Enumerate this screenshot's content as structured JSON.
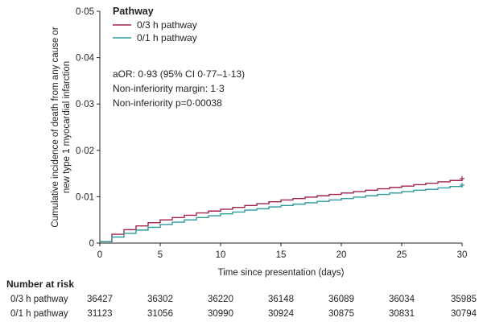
{
  "chart_data": {
    "type": "line",
    "ylabel_line1": "Cumulative incidence of death from any cause or",
    "ylabel_line2": "new type 1 myocardial infarction",
    "xlabel": "Time since presentation (days)",
    "xlim": [
      0,
      30
    ],
    "ylim": [
      0,
      0.05
    ],
    "x_ticks": [
      0,
      5,
      10,
      15,
      20,
      25,
      30
    ],
    "x_tick_labels": [
      "0",
      "5",
      "10",
      "15",
      "20",
      "25",
      "30"
    ],
    "y_ticks": [
      0,
      0.01,
      0.02,
      0.03,
      0.04,
      0.05
    ],
    "y_tick_labels": [
      "0",
      "0·01",
      "0·02",
      "0·03",
      "0·04",
      "0·05"
    ],
    "grid": false,
    "legend": {
      "title": "Pathway",
      "position": "top-left",
      "items": [
        "0/3 h pathway",
        "0/1 h pathway"
      ]
    },
    "annotations": [
      "aOR: 0·93 (95% CI 0·77–1·13)",
      "Non-inferiority margin: 1·3",
      "Non-inferiority p=0·00038"
    ],
    "series": [
      {
        "name": "0/3 h pathway",
        "color": "#a3224a",
        "x": [
          0,
          1,
          2,
          3,
          4,
          5,
          6,
          7,
          8,
          9,
          10,
          11,
          12,
          13,
          14,
          15,
          16,
          17,
          18,
          19,
          20,
          21,
          22,
          23,
          24,
          25,
          26,
          27,
          28,
          29,
          30
        ],
        "y": [
          0.0003,
          0.0019,
          0.0029,
          0.0037,
          0.0044,
          0.005,
          0.0055,
          0.006,
          0.0065,
          0.0069,
          0.0073,
          0.0077,
          0.0081,
          0.0085,
          0.0089,
          0.0093,
          0.0096,
          0.0099,
          0.0102,
          0.0105,
          0.0108,
          0.0111,
          0.0114,
          0.0117,
          0.012,
          0.0123,
          0.0126,
          0.0129,
          0.0132,
          0.0135,
          0.0139
        ]
      },
      {
        "name": "0/1 h pathway",
        "color": "#2e9a9c",
        "x": [
          0,
          1,
          2,
          3,
          4,
          5,
          6,
          7,
          8,
          9,
          10,
          11,
          12,
          13,
          14,
          15,
          16,
          17,
          18,
          19,
          20,
          21,
          22,
          23,
          24,
          25,
          26,
          27,
          28,
          29,
          30
        ],
        "y": [
          0.0003,
          0.0013,
          0.0021,
          0.0028,
          0.0034,
          0.004,
          0.0045,
          0.005,
          0.0055,
          0.0059,
          0.0063,
          0.0067,
          0.0071,
          0.0074,
          0.0078,
          0.0081,
          0.0084,
          0.0087,
          0.009,
          0.0093,
          0.0096,
          0.0099,
          0.0102,
          0.0105,
          0.0108,
          0.0111,
          0.0114,
          0.0116,
          0.0119,
          0.0122,
          0.0125
        ]
      }
    ]
  },
  "risk_table": {
    "title": "Number at risk",
    "rows": [
      {
        "label": "0/3 h pathway",
        "values": [
          "36427",
          "36302",
          "36220",
          "36148",
          "36089",
          "36034",
          "35985"
        ]
      },
      {
        "label": "0/1 h pathway",
        "values": [
          "31123",
          "31056",
          "30990",
          "30924",
          "30875",
          "30831",
          "30794"
        ]
      }
    ]
  }
}
